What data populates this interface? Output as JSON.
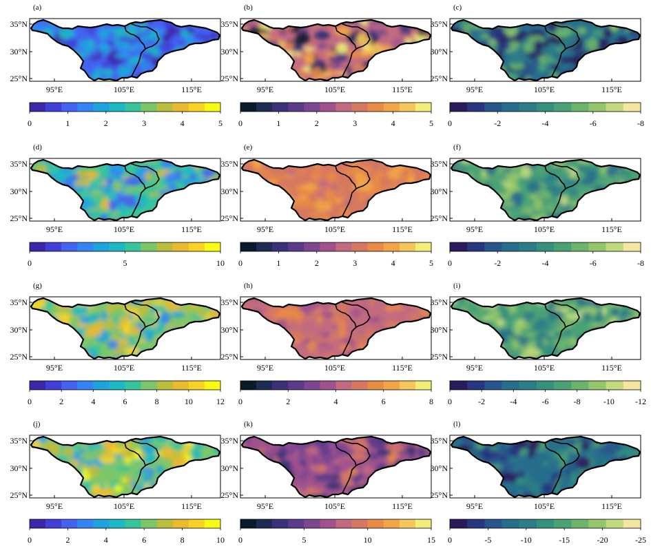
{
  "figure": {
    "lat_labels": [
      "35°N",
      "30°N",
      "25°N"
    ],
    "lon_labels": [
      "95°E",
      "105°E",
      "115°E"
    ],
    "colormaps": {
      "parula": [
        "#3e26a8",
        "#4040d8",
        "#4462f0",
        "#3384f4",
        "#1ea3df",
        "#1cb9c4",
        "#38c49b",
        "#7cc66a",
        "#bcbd3c",
        "#e8ba30",
        "#f9d323",
        "#f9fa14"
      ],
      "plasma_like": [
        "#0b1a2b",
        "#1e2b55",
        "#3a3278",
        "#5b3a8a",
        "#7c4690",
        "#a0528d",
        "#c26b80",
        "#d6785f",
        "#e88b45",
        "#f2a546",
        "#f5c65a",
        "#f3ee78"
      ],
      "viridis_like": [
        "#2a1c5c",
        "#28357f",
        "#27568c",
        "#276e8c",
        "#2c7d85",
        "#34917e",
        "#4aa176",
        "#6cb46c",
        "#93c668",
        "#c2da7d",
        "#f4e6a2"
      ]
    },
    "panels": [
      {
        "id": "a",
        "label": "(a)",
        "colormap": "parula",
        "ticks": [
          "0",
          "1",
          "2",
          "3",
          "4",
          "5"
        ],
        "mean_level": 0.22,
        "variability": 0.17
      },
      {
        "id": "b",
        "label": "(b)",
        "colormap": "plasma_like",
        "ticks": [
          "0",
          "1",
          "2",
          "3",
          "4",
          "5"
        ],
        "mean_level": 0.55,
        "variability": 0.38
      },
      {
        "id": "c",
        "label": "(c)",
        "colormap": "viridis_like",
        "ticks": [
          "0",
          "-2",
          "-4",
          "-6",
          "-8"
        ],
        "mean_level": 0.3,
        "variability": 0.3
      },
      {
        "id": "d",
        "label": "(d)",
        "colormap": "parula",
        "ticks": [
          "0",
          "5",
          "10"
        ],
        "mean_level": 0.5,
        "variability": 0.22
      },
      {
        "id": "e",
        "label": "(e)",
        "colormap": "plasma_like",
        "ticks": [
          "0",
          "1",
          "2",
          "3",
          "4",
          "5"
        ],
        "mean_level": 0.68,
        "variability": 0.09
      },
      {
        "id": "f",
        "label": "(f)",
        "colormap": "viridis_like",
        "ticks": [
          "0",
          "-2",
          "-4",
          "-6",
          "-8"
        ],
        "mean_level": 0.58,
        "variability": 0.2
      },
      {
        "id": "g",
        "label": "(g)",
        "colormap": "parula",
        "ticks": [
          "0",
          "2",
          "4",
          "6",
          "8",
          "10",
          "12"
        ],
        "mean_level": 0.6,
        "variability": 0.22
      },
      {
        "id": "h",
        "label": "(h)",
        "colormap": "plasma_like",
        "ticks": [
          "0",
          "2",
          "4",
          "6",
          "8"
        ],
        "mean_level": 0.58,
        "variability": 0.1
      },
      {
        "id": "i",
        "label": "(i)",
        "colormap": "viridis_like",
        "ticks": [
          "0",
          "-2",
          "-4",
          "-6",
          "-8",
          "-10",
          "-12"
        ],
        "mean_level": 0.6,
        "variability": 0.2
      },
      {
        "id": "j",
        "label": "(j)",
        "colormap": "parula",
        "ticks": [
          "0",
          "2",
          "4",
          "6",
          "8",
          "10"
        ],
        "mean_level": 0.65,
        "variability": 0.22
      },
      {
        "id": "k",
        "label": "(k)",
        "colormap": "plasma_like",
        "ticks": [
          "0",
          "5",
          "10",
          "15"
        ],
        "mean_level": 0.42,
        "variability": 0.18
      },
      {
        "id": "l",
        "label": "(l)",
        "colormap": "viridis_like",
        "ticks": [
          "0",
          "-5",
          "-10",
          "-15",
          "-20",
          "-25"
        ],
        "mean_level": 0.32,
        "variability": 0.2
      }
    ]
  }
}
